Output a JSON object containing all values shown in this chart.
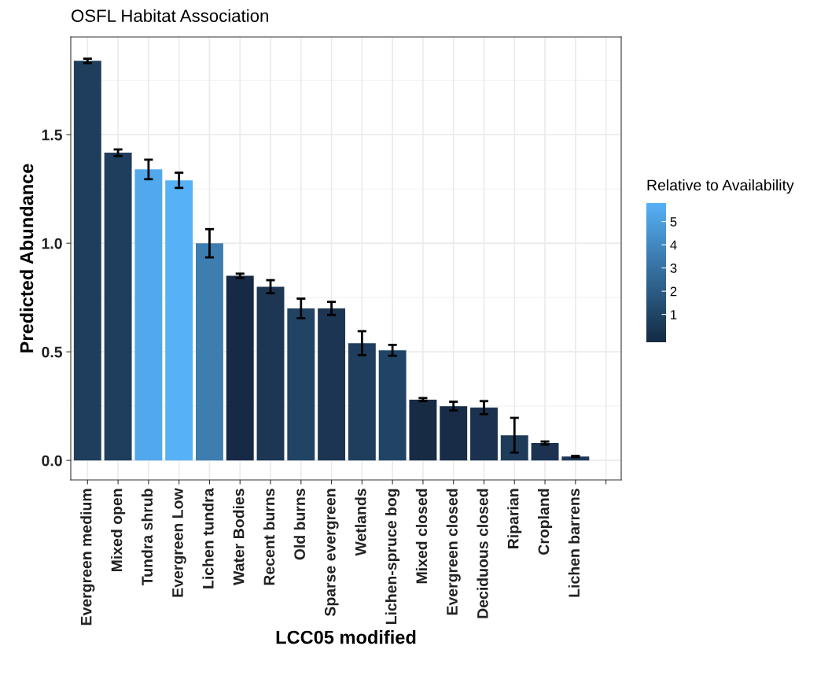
{
  "chart_data": {
    "type": "bar",
    "title": "OSFL Habitat Association",
    "xlabel": "LCC05 modified",
    "ylabel": "Predicted Abundance",
    "clabel": "Relative to Availability",
    "categories": [
      "Evergreen medium",
      "Mixed open",
      "Tundra shrub",
      "Evergreen Low",
      "Lichen tundra",
      "Water Bodies",
      "Recent burns",
      "Old burns",
      "Sparse evergreen",
      "Wetlands",
      "Lichen-spruce bog",
      "Mixed closed",
      "Evergreen closed",
      "Deciduous closed",
      "Riparian",
      "Cropland",
      "Lichen barrens",
      null
    ],
    "values": [
      1.84,
      1.417,
      1.34,
      1.29,
      1.0,
      0.85,
      0.8,
      0.7,
      0.7,
      0.54,
      0.507,
      0.28,
      0.25,
      0.243,
      0.116,
      0.08,
      0.018,
      null
    ],
    "errors": [
      0.01,
      0.015,
      0.045,
      0.035,
      0.065,
      0.01,
      0.03,
      0.045,
      0.03,
      0.055,
      0.025,
      0.007,
      0.02,
      0.03,
      0.08,
      0.007,
      0.003,
      null
    ],
    "colors": [
      "#1f3d5c",
      "#1f3d5c",
      "#52a8ec",
      "#56b1f7",
      "#3d7db0",
      "#172a45",
      "#1c3653",
      "#214364",
      "#1c3553",
      "#1f3e5e",
      "#214466",
      "#172b45",
      "#182c47",
      "#1a324f",
      "#1e3b5a",
      "#1b3350",
      "#1d3858",
      null
    ],
    "clim": [
      -0.2,
      5.8
    ],
    "cticks": [
      1,
      2,
      3,
      4,
      5
    ],
    "ylim": [
      -0.09,
      1.95
    ],
    "yticks": [
      {
        "value": 0,
        "label": "0.0"
      },
      0.5,
      {
        "value": 1,
        "label": "1.0"
      },
      1.5
    ],
    "grid": true
  }
}
